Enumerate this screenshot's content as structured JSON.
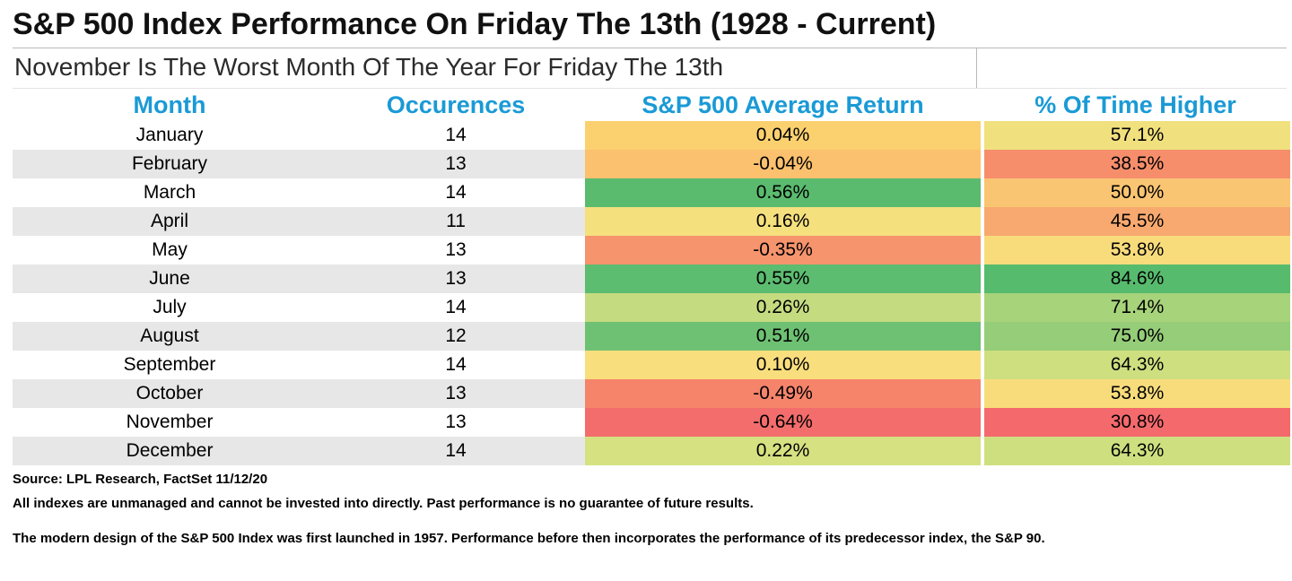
{
  "title": "S&P 500 Index Performance On Friday The 13th (1928 - Current)",
  "subtitle": "November Is The Worst Month Of The Year For Friday The 13th",
  "colors": {
    "header_text": "#1a9ad6",
    "row_alt_bg": "#e7e7e7"
  },
  "chart_data": {
    "type": "table",
    "title": "S&P 500 Index Performance On Friday The 13th (1928 - Current)",
    "subtitle": "November Is The Worst Month Of The Year For Friday The 13th",
    "columns": [
      "Month",
      "Occurences",
      "S&P 500 Average Return",
      "% Of Time Higher"
    ],
    "rows": [
      {
        "month": "January",
        "occurences": "14",
        "avg_return": "0.04%",
        "pct_higher": "57.1%",
        "return_color": "#fbd16f",
        "higher_color": "#f1e07e"
      },
      {
        "month": "February",
        "occurences": "13",
        "avg_return": "-0.04%",
        "pct_higher": "38.5%",
        "return_color": "#fbc16e",
        "higher_color": "#f68e6c"
      },
      {
        "month": "March",
        "occurences": "14",
        "avg_return": "0.56%",
        "pct_higher": "50.0%",
        "return_color": "#5abb6f",
        "higher_color": "#fac572"
      },
      {
        "month": "April",
        "occurences": "11",
        "avg_return": "0.16%",
        "pct_higher": "45.5%",
        "return_color": "#f5e07e",
        "higher_color": "#f8a96f"
      },
      {
        "month": "May",
        "occurences": "13",
        "avg_return": "-0.35%",
        "pct_higher": "53.8%",
        "return_color": "#f6946d",
        "higher_color": "#f8dc7c"
      },
      {
        "month": "June",
        "occurences": "13",
        "avg_return": "0.55%",
        "pct_higher": "84.6%",
        "return_color": "#5cbc70",
        "higher_color": "#57bb6e"
      },
      {
        "month": "July",
        "occurences": "14",
        "avg_return": "0.26%",
        "pct_higher": "71.4%",
        "return_color": "#c5db80",
        "higher_color": "#a7d37b"
      },
      {
        "month": "August",
        "occurences": "12",
        "avg_return": "0.51%",
        "pct_higher": "75.0%",
        "return_color": "#6ec173",
        "higher_color": "#96cd79"
      },
      {
        "month": "September",
        "occurences": "14",
        "avg_return": "0.10%",
        "pct_higher": "64.3%",
        "return_color": "#f9de7d",
        "higher_color": "#cedf80"
      },
      {
        "month": "October",
        "occurences": "13",
        "avg_return": "-0.49%",
        "pct_higher": "53.8%",
        "return_color": "#f5846b",
        "higher_color": "#f8dc7c"
      },
      {
        "month": "November",
        "occurences": "13",
        "avg_return": "-0.64%",
        "pct_higher": "30.8%",
        "return_color": "#f36d6c",
        "higher_color": "#f3696c"
      },
      {
        "month": "December",
        "occurences": "14",
        "avg_return": "0.22%",
        "pct_higher": "64.3%",
        "return_color": "#d6e181",
        "higher_color": "#cedf80"
      }
    ]
  },
  "header": {
    "col_month": "Month",
    "col_occurences": "Occurences",
    "col_avg_return": "S&P 500 Average Return",
    "col_pct_higher": "% Of Time Higher"
  },
  "footer": {
    "source": "Source: LPL Research, FactSet 11/12/20",
    "disclaimer1": "All indexes are unmanaged and cannot be invested into directly. Past performance is no guarantee of future results.",
    "disclaimer2": "The modern design of the S&P 500 Index was first launched in 1957. Performance before then incorporates the performance of its predecessor index, the S&P 90."
  }
}
